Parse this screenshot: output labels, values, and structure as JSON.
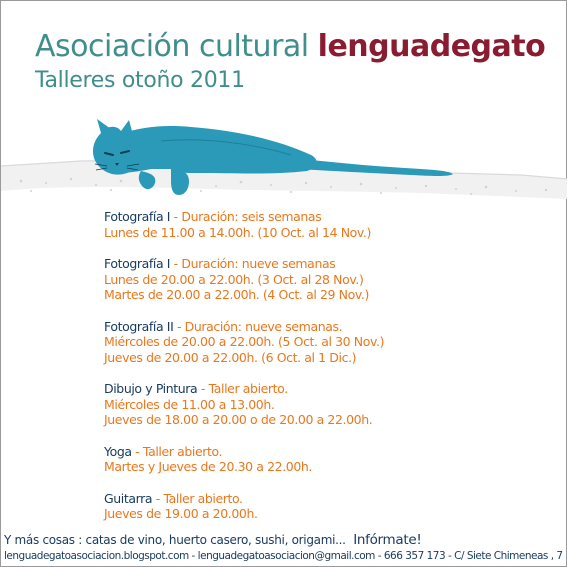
{
  "header": {
    "title_part1": "Asociación cultural",
    "title_part2": "lenguadegato",
    "subtitle": "Talleres otoño 2011"
  },
  "colors": {
    "teal_title": "#3f8e8b",
    "brand_red": "#8a1c32",
    "cat_blue": "#2a9ab8",
    "navy_text": "#173a5e",
    "orange_text": "#e8781e"
  },
  "illustration": {
    "icon": "cat-on-wall-illustration"
  },
  "workshops": [
    {
      "name": "Fotografía I",
      "dash": "-",
      "detail": "Duración: seis semanas",
      "slots": [
        "Lunes de 11.00 a 14.00h. (10 Oct. al 14 Nov.)"
      ]
    },
    {
      "name": "Fotografía I",
      "dash": "-",
      "detail": "Duración: nueve semanas",
      "slots": [
        "Lunes de 20.00 a 22.00h. (3 Oct. al 28 Nov.)",
        "Martes de 20.00 a 22.00h. (4 Oct. al 29 Nov.)"
      ]
    },
    {
      "name": "Fotografía II",
      "dash": "-",
      "detail": "Duración: nueve semanas.",
      "slots": [
        "Miércoles de 20.00 a 22.00h.  (5 Oct. al 30 Nov.)",
        "Jueves de 20.00 a 22.00h. (6 Oct. al 1 Dic.)"
      ]
    },
    {
      "name": "Dibujo y Pintura",
      "dash": "-",
      "detail": "Taller abierto.",
      "slots": [
        "Miércoles de 11.00 a 13.00h.",
        "Jueves de 18.00 a 20.00 o de 20.00 a 22.00h."
      ]
    },
    {
      "name": "Yoga",
      "dash": "-",
      "detail": "Taller abierto.",
      "slots": [
        "Martes y Jueves de 20.30 a 22.00h."
      ]
    },
    {
      "name": "Guitarra",
      "dash": "-",
      "detail": "Taller abierto.",
      "slots": [
        "Jueves de 19.00 a 20.00h."
      ]
    }
  ],
  "footer": {
    "more": "Y más cosas : catas de vino, huerto casero, sushi, origami...",
    "cta": "Infórmate!",
    "contact": "lenguadegatoasociacion.blogspot.com - lenguadegatoasociacion@gmail.com - 666 357 173 - C/ Siete Chimeneas , 7"
  }
}
